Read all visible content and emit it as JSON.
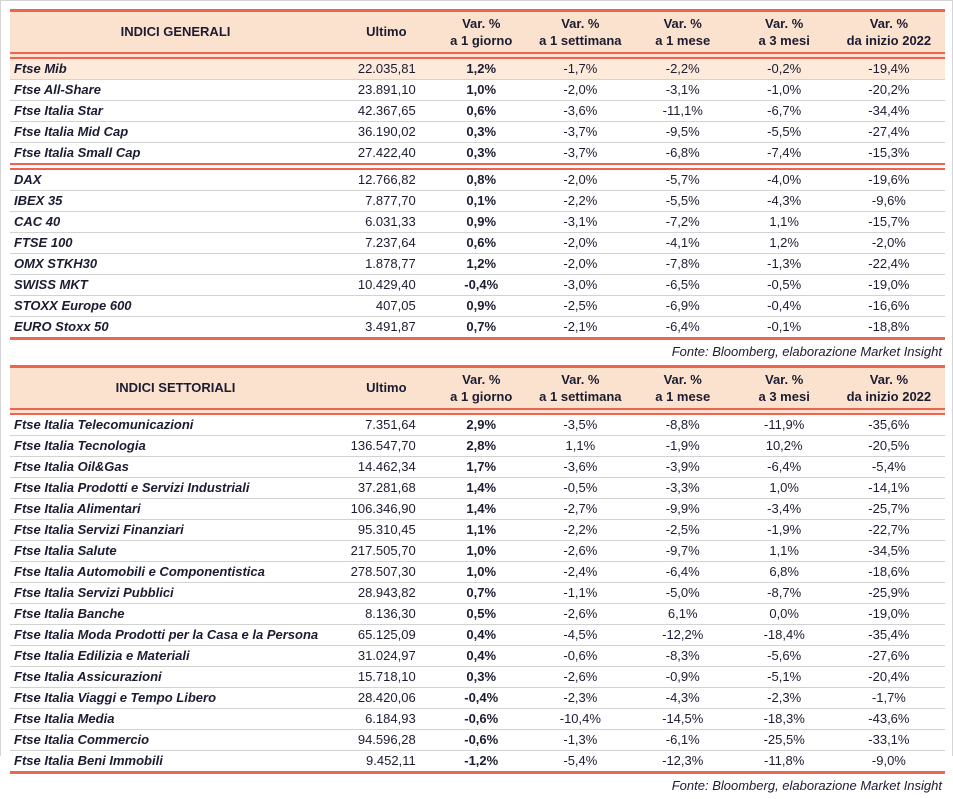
{
  "colors": {
    "accent_red": "#ee6450",
    "header_bg": "#fbe2cf",
    "highlight_row_bg": "#fdeadb",
    "text_dark": "#1b1c31",
    "row_divider": "#d2d2d2"
  },
  "shared_headers": {
    "ultimo": "Ultimo",
    "var1": {
      "l1": "Var. %",
      "l2": "a 1 giorno"
    },
    "var2": {
      "l1": "Var. %",
      "l2": "a 1 settimana"
    },
    "var3": {
      "l1": "Var. %",
      "l2": "a 1 mese"
    },
    "var4": {
      "l1": "Var. %",
      "l2": "a 3 mesi"
    },
    "var5": {
      "l1": "Var. %",
      "l2": "da inizio 2022"
    }
  },
  "tables": {
    "general": {
      "title": "INDICI GENERALI",
      "highlight_rows": [
        0
      ],
      "group_breaks": [
        5
      ],
      "rows": [
        [
          "Ftse Mib",
          "22.035,81",
          "1,2%",
          "-1,7%",
          "-2,2%",
          "-0,2%",
          "-19,4%"
        ],
        [
          "Ftse All-Share",
          "23.891,10",
          "1,0%",
          "-2,0%",
          "-3,1%",
          "-1,0%",
          "-20,2%"
        ],
        [
          "Ftse Italia Star",
          "42.367,65",
          "0,6%",
          "-3,6%",
          "-11,1%",
          "-6,7%",
          "-34,4%"
        ],
        [
          "Ftse Italia Mid Cap",
          "36.190,02",
          "0,3%",
          "-3,7%",
          "-9,5%",
          "-5,5%",
          "-27,4%"
        ],
        [
          "Ftse Italia Small Cap",
          "27.422,40",
          "0,3%",
          "-3,7%",
          "-6,8%",
          "-7,4%",
          "-15,3%"
        ],
        [
          "DAX",
          "12.766,82",
          "0,8%",
          "-2,0%",
          "-5,7%",
          "-4,0%",
          "-19,6%"
        ],
        [
          "IBEX 35",
          "7.877,70",
          "0,1%",
          "-2,2%",
          "-5,5%",
          "-4,3%",
          "-9,6%"
        ],
        [
          "CAC 40",
          "6.031,33",
          "0,9%",
          "-3,1%",
          "-7,2%",
          "1,1%",
          "-15,7%"
        ],
        [
          "FTSE 100",
          "7.237,64",
          "0,6%",
          "-2,0%",
          "-4,1%",
          "1,2%",
          "-2,0%"
        ],
        [
          "OMX STKH30",
          "1.878,77",
          "1,2%",
          "-2,0%",
          "-7,8%",
          "-1,3%",
          "-22,4%"
        ],
        [
          "SWISS MKT",
          "10.429,40",
          "-0,4%",
          "-3,0%",
          "-6,5%",
          "-0,5%",
          "-19,0%"
        ],
        [
          "STOXX Europe 600",
          "407,05",
          "0,9%",
          "-2,5%",
          "-6,9%",
          "-0,4%",
          "-16,6%"
        ],
        [
          "EURO Stoxx 50",
          "3.491,87",
          "0,7%",
          "-2,1%",
          "-6,4%",
          "-0,1%",
          "-18,8%"
        ]
      ],
      "source": "Fonte: Bloomberg, elaborazione Market Insight"
    },
    "sector": {
      "title": "INDICI SETTORIALI",
      "highlight_rows": [],
      "group_breaks": [],
      "rows": [
        [
          "Ftse Italia Telecomunicazioni",
          "7.351,64",
          "2,9%",
          "-3,5%",
          "-8,8%",
          "-11,9%",
          "-35,6%"
        ],
        [
          "Ftse Italia Tecnologia",
          "136.547,70",
          "2,8%",
          "1,1%",
          "-1,9%",
          "10,2%",
          "-20,5%"
        ],
        [
          "Ftse Italia Oil&Gas",
          "14.462,34",
          "1,7%",
          "-3,6%",
          "-3,9%",
          "-6,4%",
          "-5,4%"
        ],
        [
          "Ftse Italia Prodotti e Servizi Industriali",
          "37.281,68",
          "1,4%",
          "-0,5%",
          "-3,3%",
          "1,0%",
          "-14,1%"
        ],
        [
          "Ftse Italia Alimentari",
          "106.346,90",
          "1,4%",
          "-2,7%",
          "-9,9%",
          "-3,4%",
          "-25,7%"
        ],
        [
          "Ftse Italia Servizi Finanziari",
          "95.310,45",
          "1,1%",
          "-2,2%",
          "-2,5%",
          "-1,9%",
          "-22,7%"
        ],
        [
          "Ftse Italia Salute",
          "217.505,70",
          "1,0%",
          "-2,6%",
          "-9,7%",
          "1,1%",
          "-34,5%"
        ],
        [
          "Ftse Italia Automobili e Componentistica",
          "278.507,30",
          "1,0%",
          "-2,4%",
          "-6,4%",
          "6,8%",
          "-18,6%"
        ],
        [
          "Ftse Italia Servizi Pubblici",
          "28.943,82",
          "0,7%",
          "-1,1%",
          "-5,0%",
          "-8,7%",
          "-25,9%"
        ],
        [
          "Ftse Italia Banche",
          "8.136,30",
          "0,5%",
          "-2,6%",
          "6,1%",
          "0,0%",
          "-19,0%"
        ],
        [
          "Ftse Italia Moda Prodotti per la Casa e la Persona",
          "65.125,09",
          "0,4%",
          "-4,5%",
          "-12,2%",
          "-18,4%",
          "-35,4%"
        ],
        [
          "Ftse Italia Edilizia e Materiali",
          "31.024,97",
          "0,4%",
          "-0,6%",
          "-8,3%",
          "-5,6%",
          "-27,6%"
        ],
        [
          "Ftse Italia Assicurazioni",
          "15.718,10",
          "0,3%",
          "-2,6%",
          "-0,9%",
          "-5,1%",
          "-20,4%"
        ],
        [
          "Ftse Italia Viaggi e Tempo Libero",
          "28.420,06",
          "-0,4%",
          "-2,3%",
          "-4,3%",
          "-2,3%",
          "-1,7%"
        ],
        [
          "Ftse Italia Media",
          "6.184,93",
          "-0,6%",
          "-10,4%",
          "-14,5%",
          "-18,3%",
          "-43,6%"
        ],
        [
          "Ftse Italia Commercio",
          "94.596,28",
          "-0,6%",
          "-1,3%",
          "-6,1%",
          "-25,5%",
          "-33,1%"
        ],
        [
          "Ftse Italia Beni Immobili",
          "9.452,11",
          "-1,2%",
          "-5,4%",
          "-12,3%",
          "-11,8%",
          "-9,0%"
        ]
      ],
      "source": "Fonte: Bloomberg, elaborazione Market Insight"
    }
  }
}
